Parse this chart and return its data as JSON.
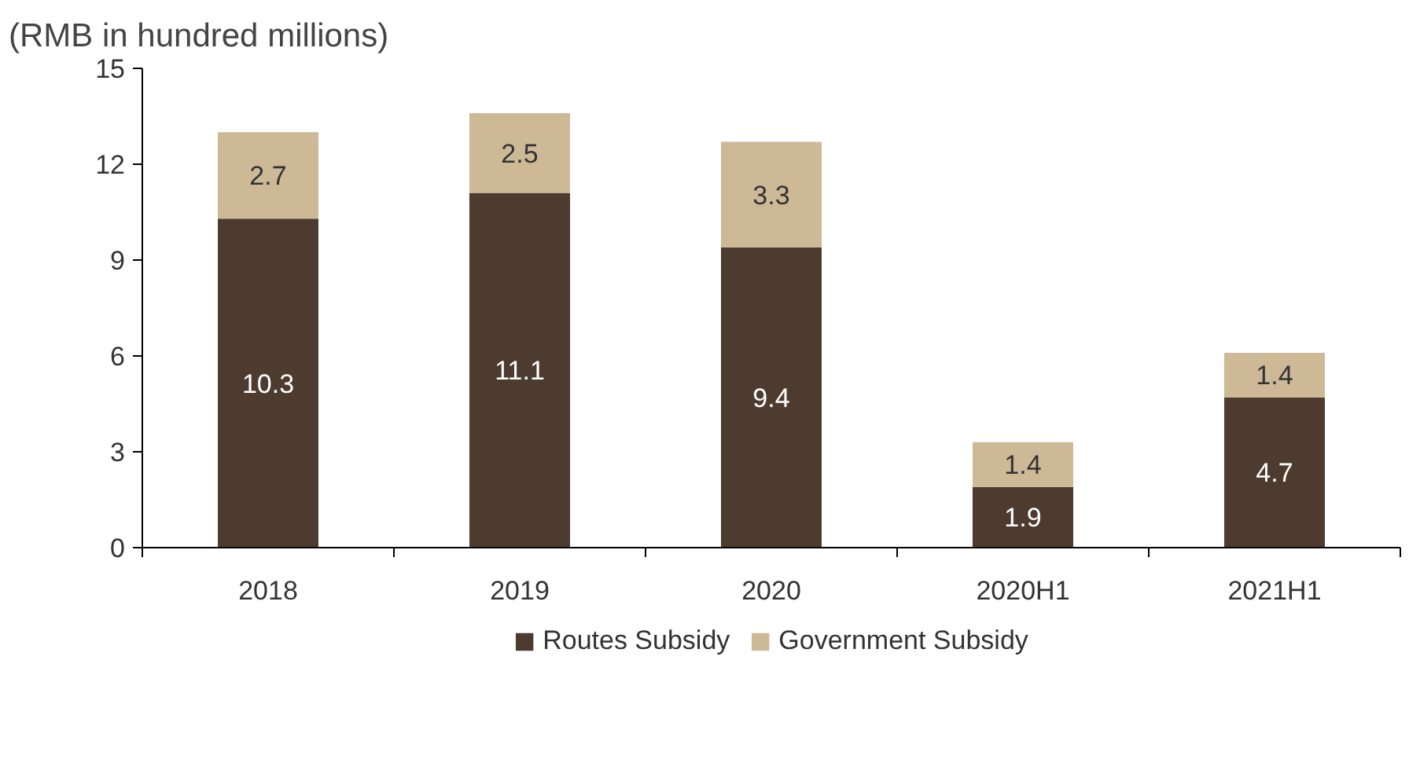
{
  "chart_data": {
    "type": "bar",
    "title": "(RMB in hundred millions)",
    "categories": [
      "2018",
      "2019",
      "2020",
      "2020H1",
      "2021H1"
    ],
    "stacked": true,
    "data_labels": true,
    "legend": "bottom",
    "grid": false,
    "ylim": [
      0,
      15
    ],
    "yticks": [
      0,
      3,
      6,
      9,
      12,
      15
    ],
    "series": [
      {
        "name": "Routes Subsidy",
        "color": "#4e3b30",
        "values": [
          10.3,
          11.1,
          9.4,
          1.9,
          4.7
        ]
      },
      {
        "name": "Government Subsidy",
        "color": "#cdb996",
        "values": [
          2.7,
          2.5,
          3.3,
          1.4,
          1.4
        ]
      }
    ]
  }
}
